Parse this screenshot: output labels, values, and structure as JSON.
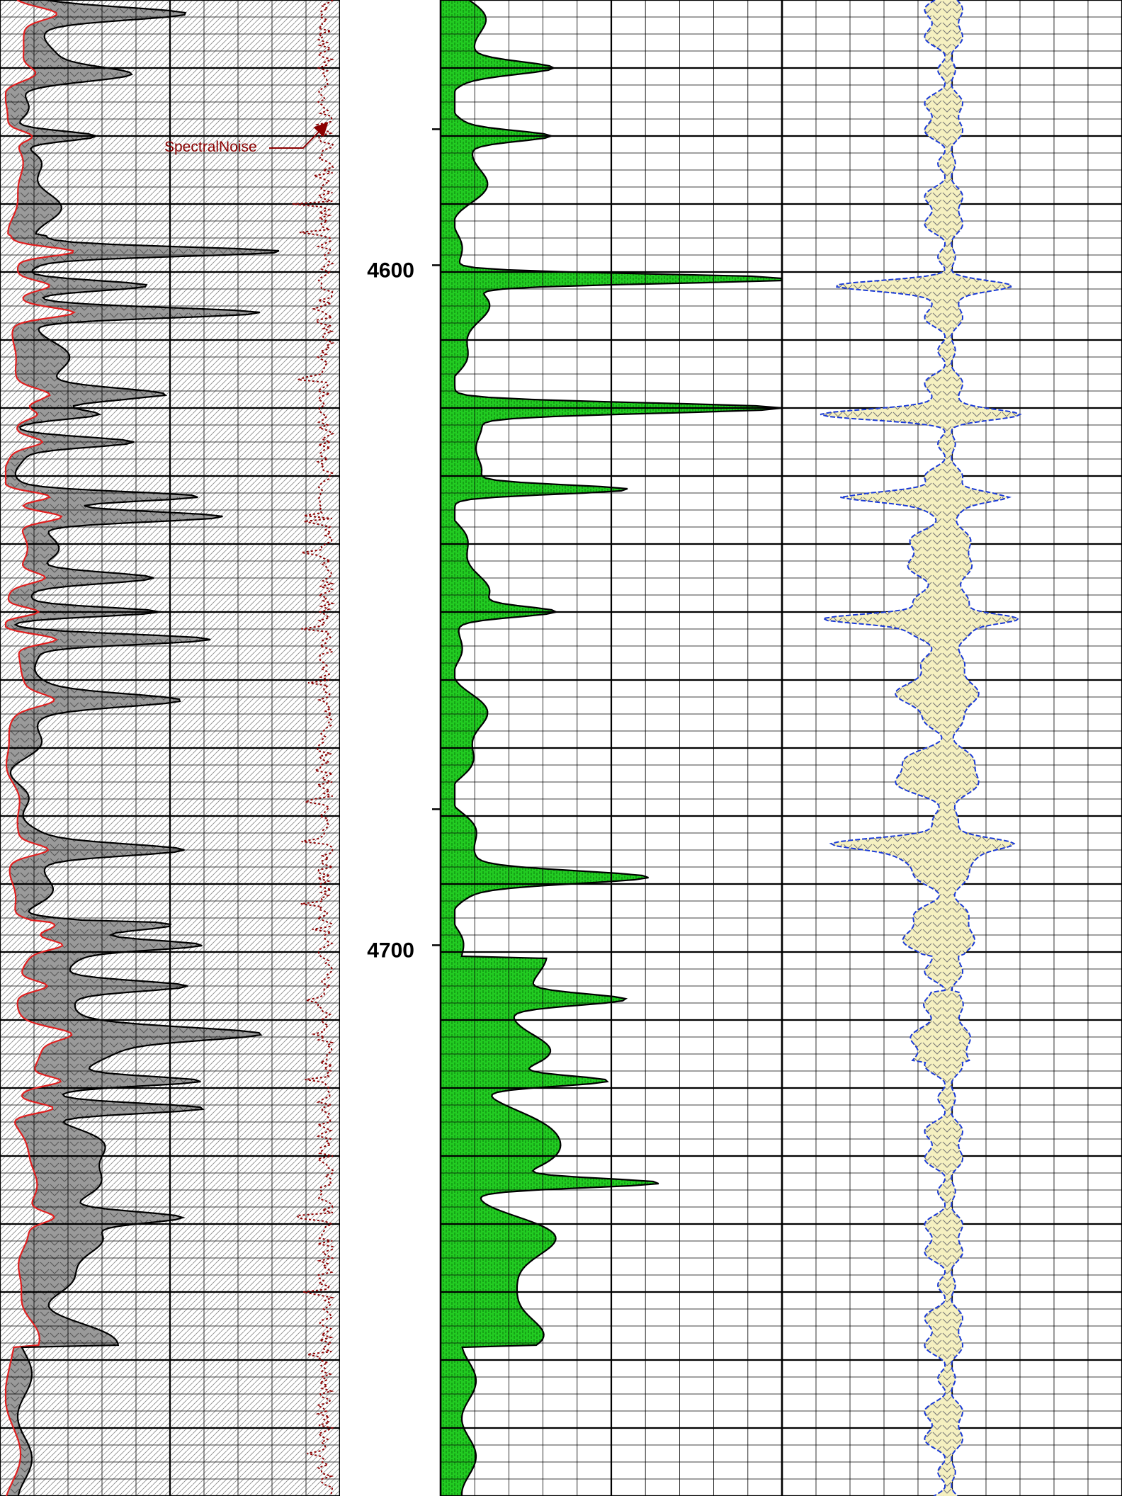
{
  "chart_data": {
    "type": "area",
    "title": "",
    "tracks": [
      {
        "name": "track-1",
        "grid": true
      },
      {
        "name": "track-2",
        "grid": true
      },
      {
        "name": "track-3",
        "grid": true
      }
    ],
    "depth_axis": {
      "labels": [
        "4600",
        "4700"
      ],
      "tick_values": [
        4580,
        4600,
        4680,
        4700
      ],
      "range": [
        4561,
        4780
      ]
    },
    "annotations": [
      {
        "text": "SpectralNoise",
        "color": "#8b0000"
      }
    ],
    "colors": {
      "track1_fill": "#9a9a9a",
      "track1_outline": "#000000",
      "track1_secondary_curve": "#e02020",
      "track1_noise_curve": "#8b0000",
      "track2_fill": "#22cc22",
      "track3_fill": "#f5f0c0",
      "track3_curve": "#1a3ad6",
      "grid": "#000000"
    },
    "peaks": {
      "track1_main": [
        4563,
        4572,
        4581,
        4598,
        4603,
        4607,
        4619,
        4622,
        4626,
        4634,
        4637,
        4646,
        4651,
        4655,
        4664,
        4686,
        4697,
        4700,
        4706,
        4713,
        4720,
        4724,
        4740
      ],
      "track2_main": [
        4571,
        4581,
        4602,
        4621,
        4633,
        4651,
        4690,
        4708,
        4720,
        4735
      ],
      "track3_main": [
        4603,
        4622,
        4634,
        4652,
        4685
      ]
    }
  }
}
